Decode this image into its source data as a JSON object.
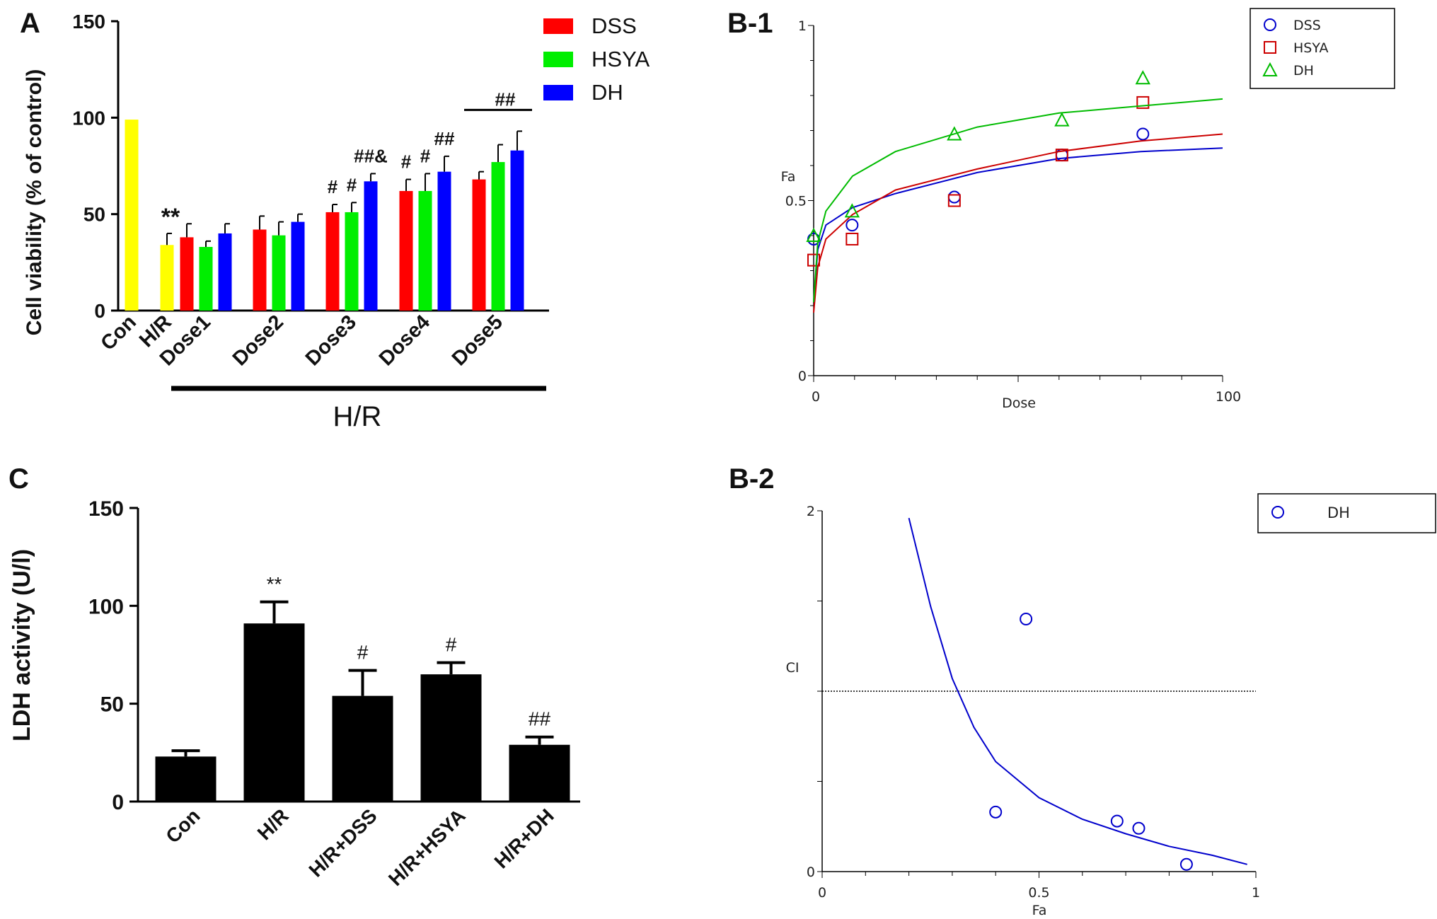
{
  "panels": {
    "A": {
      "label": "A",
      "ylabel": "Cell viability (% of control)",
      "yticks": [
        "0",
        "50",
        "100",
        "150"
      ],
      "ylim": [
        0,
        150
      ],
      "group_label": "H/R",
      "legend": [
        {
          "name": "DSS",
          "color": "#ff0000"
        },
        {
          "name": "HSYA",
          "color": "#00ee00"
        },
        {
          "name": "DH",
          "color": "#0000ff"
        }
      ]
    },
    "B1": {
      "label": "B-1",
      "xlabel": "Dose",
      "ylabel": "Fa",
      "xticks": [
        "0",
        "100"
      ],
      "yticks": [
        "0",
        "0.5",
        "1"
      ],
      "legend": [
        {
          "name": "DSS",
          "marker": "circle",
          "color": "#0000cc"
        },
        {
          "name": "HSYA",
          "marker": "square",
          "color": "#cc0000"
        },
        {
          "name": "DH",
          "marker": "triangle",
          "color": "#00bb00"
        }
      ]
    },
    "B2": {
      "label": "B-2",
      "xlabel": "Fa",
      "ylabel": "CI",
      "xticks": [
        "0",
        "0.5",
        "1"
      ],
      "yticks": [
        "0",
        "2"
      ],
      "legend": [
        {
          "name": "DH",
          "marker": "circle",
          "color": "#0000cc"
        }
      ]
    },
    "C": {
      "label": "C",
      "ylabel": "LDH activity (U/l)",
      "yticks": [
        "0",
        "50",
        "100",
        "150"
      ],
      "ylim": [
        0,
        150
      ]
    }
  },
  "chart_data": [
    {
      "panel": "A",
      "type": "bar",
      "ylabel": "Cell viability (% of control)",
      "ylim": [
        0,
        150
      ],
      "categories": [
        "Con",
        "H/R",
        "Dose1",
        "Dose2",
        "Dose3",
        "Dose4",
        "Dose5"
      ],
      "single": [
        {
          "category": "Con",
          "value": 99,
          "error": 0,
          "color": "#ffff00",
          "sig": ""
        },
        {
          "category": "H/R",
          "value": 34,
          "error": 6,
          "color": "#ffff00",
          "sig": "**"
        }
      ],
      "series": [
        {
          "name": "DSS",
          "color": "#ff0000",
          "values": [
            null,
            null,
            38,
            42,
            51,
            62,
            68
          ],
          "errors": [
            0,
            0,
            7,
            7,
            4,
            6,
            4
          ]
        },
        {
          "name": "HSYA",
          "color": "#00ee00",
          "values": [
            null,
            null,
            33,
            39,
            51,
            62,
            77
          ],
          "errors": [
            0,
            0,
            3,
            7,
            5,
            9,
            9
          ]
        },
        {
          "name": "DH",
          "color": "#0000ff",
          "values": [
            null,
            null,
            40,
            46,
            67,
            72,
            83
          ],
          "errors": [
            0,
            0,
            5,
            4,
            4,
            8,
            10
          ]
        }
      ],
      "annotations": [
        {
          "category": "Dose3",
          "series": "DSS",
          "text": "#"
        },
        {
          "category": "Dose3",
          "series": "HSYA",
          "text": "#"
        },
        {
          "category": "Dose3",
          "series": "DH",
          "text": "##&"
        },
        {
          "category": "Dose4",
          "series": "DSS",
          "text": "#"
        },
        {
          "category": "Dose4",
          "series": "HSYA",
          "text": "#"
        },
        {
          "category": "Dose4",
          "series": "DH",
          "text": "##"
        },
        {
          "category": "Dose5",
          "series": "all",
          "text": "##"
        }
      ]
    },
    {
      "panel": "B-1",
      "type": "scatter",
      "xlabel": "Dose",
      "ylabel": "Fa",
      "xlim": [
        0,
        100
      ],
      "ylim": [
        0,
        1
      ],
      "series": [
        {
          "name": "DSS",
          "marker": "circle",
          "color": "#0000cc",
          "points": [
            [
              0,
              0.39
            ],
            [
              9.4,
              0.43
            ],
            [
              34.4,
              0.51
            ],
            [
              60.7,
              0.63
            ],
            [
              80.5,
              0.69
            ]
          ],
          "fit_curve": [
            [
              0,
              0.21
            ],
            [
              1,
              0.36
            ],
            [
              3,
              0.43
            ],
            [
              9.5,
              0.48
            ],
            [
              20,
              0.52
            ],
            [
              40,
              0.58
            ],
            [
              60,
              0.62
            ],
            [
              80,
              0.64
            ],
            [
              100,
              0.65
            ]
          ]
        },
        {
          "name": "HSYA",
          "marker": "square",
          "color": "#cc0000",
          "points": [
            [
              0,
              0.33
            ],
            [
              9.4,
              0.39
            ],
            [
              34.4,
              0.5
            ],
            [
              60.7,
              0.63
            ],
            [
              80.5,
              0.78
            ]
          ],
          "fit_curve": [
            [
              0,
              0.18
            ],
            [
              1,
              0.31
            ],
            [
              3,
              0.39
            ],
            [
              9.5,
              0.46
            ],
            [
              20,
              0.53
            ],
            [
              40,
              0.59
            ],
            [
              60,
              0.64
            ],
            [
              80,
              0.67
            ],
            [
              100,
              0.69
            ]
          ]
        },
        {
          "name": "DH",
          "marker": "triangle",
          "color": "#00bb00",
          "points": [
            [
              0,
              0.4
            ],
            [
              9.4,
              0.47
            ],
            [
              34.4,
              0.69
            ],
            [
              60.7,
              0.73
            ],
            [
              80.5,
              0.85
            ]
          ],
          "fit_curve": [
            [
              0,
              0.21
            ],
            [
              1,
              0.38
            ],
            [
              3,
              0.47
            ],
            [
              9.5,
              0.57
            ],
            [
              20,
              0.64
            ],
            [
              40,
              0.71
            ],
            [
              60,
              0.75
            ],
            [
              80,
              0.77
            ],
            [
              100,
              0.79
            ]
          ]
        }
      ]
    },
    {
      "panel": "B-2",
      "type": "scatter",
      "xlabel": "Fa",
      "ylabel": "CI",
      "xlim": [
        0,
        1
      ],
      "ylim": [
        0,
        2
      ],
      "reference_line": 1,
      "series": [
        {
          "name": "DH",
          "marker": "circle",
          "color": "#0000cc",
          "points": [
            [
              0.4,
              0.33
            ],
            [
              0.47,
              1.4
            ],
            [
              0.68,
              0.28
            ],
            [
              0.73,
              0.24
            ],
            [
              0.84,
              0.04
            ]
          ],
          "fit_curve": [
            [
              0.2,
              1.96
            ],
            [
              0.25,
              1.47
            ],
            [
              0.3,
              1.07
            ],
            [
              0.35,
              0.8
            ],
            [
              0.4,
              0.61
            ],
            [
              0.5,
              0.41
            ],
            [
              0.6,
              0.29
            ],
            [
              0.7,
              0.21
            ],
            [
              0.8,
              0.14
            ],
            [
              0.9,
              0.09
            ],
            [
              0.98,
              0.04
            ]
          ]
        }
      ]
    },
    {
      "panel": "C",
      "type": "bar",
      "ylabel": "LDH activity (U/l)",
      "ylim": [
        0,
        150
      ],
      "categories": [
        "Con",
        "H/R",
        "H/R+DSS",
        "H/R+HSYA",
        "H/R+DH"
      ],
      "values": [
        23,
        91,
        54,
        65,
        29
      ],
      "errors": [
        3,
        11,
        13,
        6,
        4
      ],
      "color": "#000000",
      "sig": [
        "",
        "**",
        "#",
        "#",
        "##"
      ]
    }
  ]
}
